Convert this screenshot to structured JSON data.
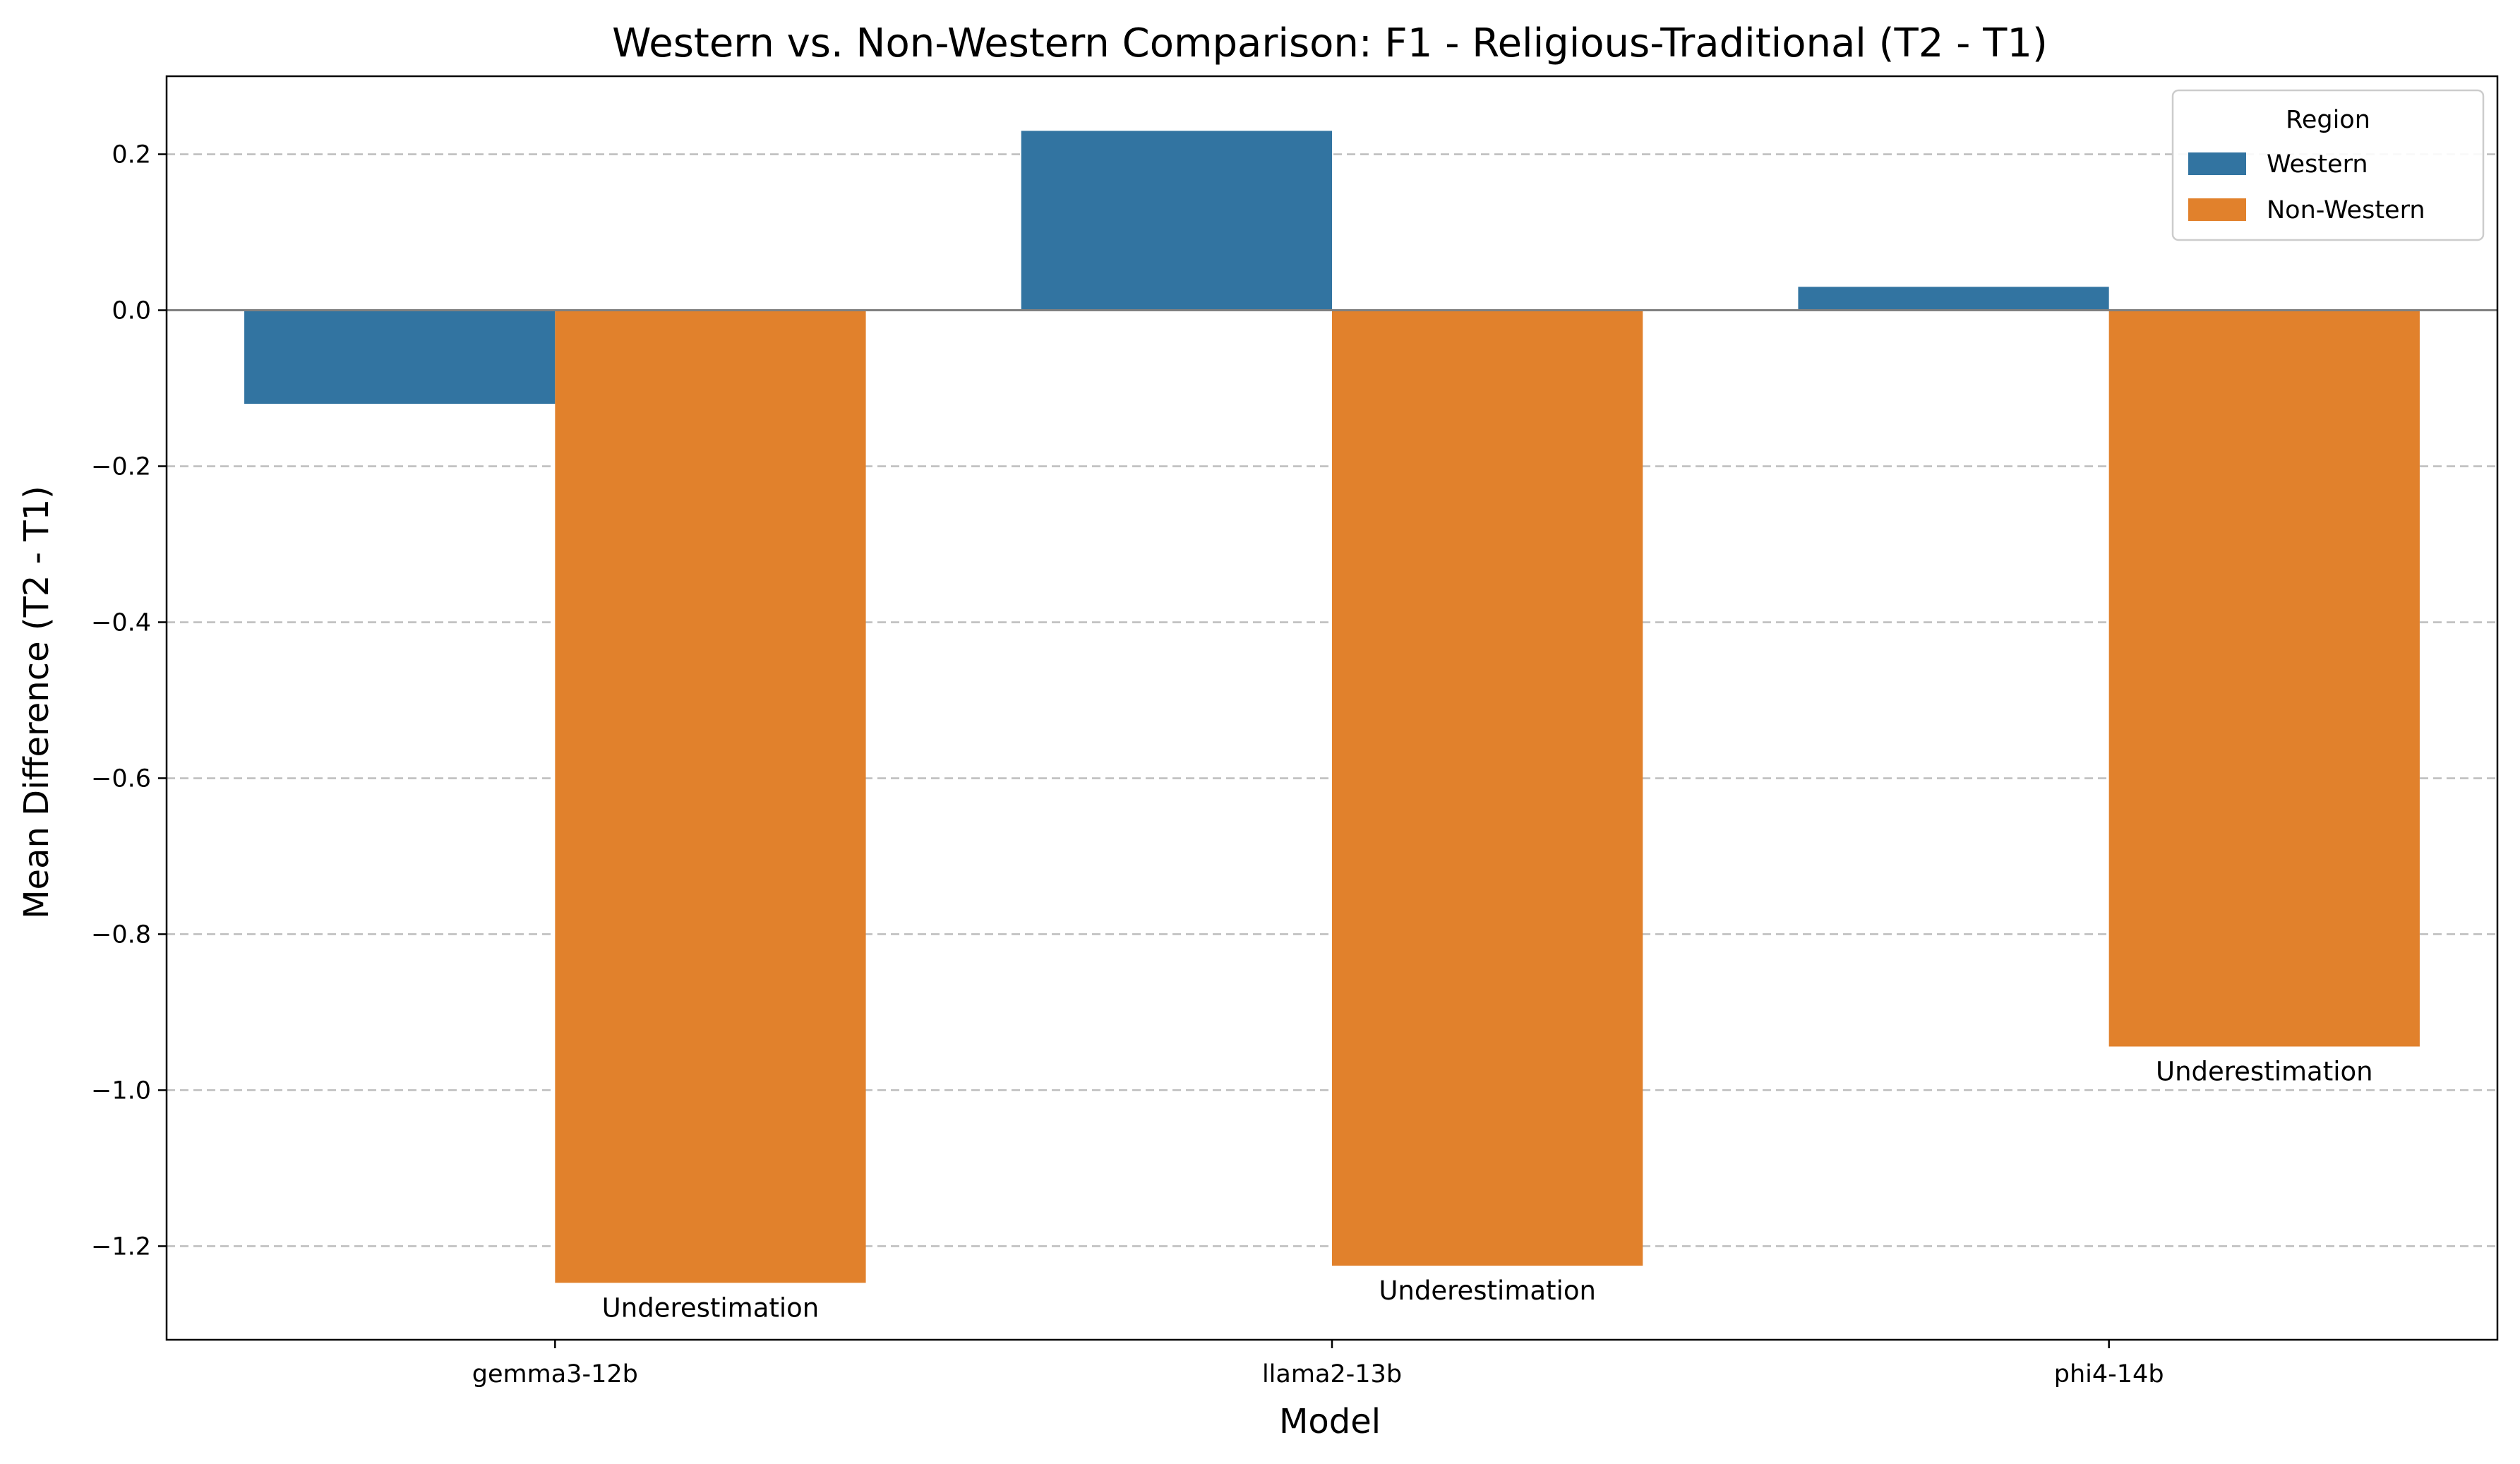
{
  "chart_data": {
    "type": "bar",
    "title": "Western vs. Non-Western Comparison: F1 - Religious-Traditional (T2 - T1)",
    "xlabel": "Model",
    "ylabel": "Mean Difference (T2 - T1)",
    "categories": [
      "gemma3-12b",
      "llama2-13b",
      "phi4-14b"
    ],
    "series": [
      {
        "name": "Western",
        "color": "#3274a1",
        "values": [
          -0.12,
          0.23,
          0.03
        ]
      },
      {
        "name": "Non-Western",
        "color": "#e1812c",
        "values": [
          -1.247,
          -1.225,
          -0.944
        ]
      }
    ],
    "yticks": [
      0.2,
      0.0,
      -0.2,
      -0.4,
      -0.6,
      -0.8,
      -1.0,
      -1.2
    ],
    "ytick_labels": [
      "0.2",
      "0.0",
      "−0.2",
      "−0.4",
      "−0.6",
      "−0.8",
      "−1.0",
      "−1.2"
    ],
    "ylim": [
      -1.32,
      0.3
    ],
    "grid": "y-dashed",
    "legend": {
      "title": "Region",
      "placement": "top-right",
      "labels": [
        "Western",
        "Non-Western"
      ]
    },
    "annotations": [
      {
        "category": "gemma3-12b",
        "series": "Non-Western",
        "text": "Underestimation"
      },
      {
        "category": "llama2-13b",
        "series": "Non-Western",
        "text": "Underestimation"
      },
      {
        "category": "phi4-14b",
        "series": "Non-Western",
        "text": "Underestimation"
      }
    ]
  }
}
